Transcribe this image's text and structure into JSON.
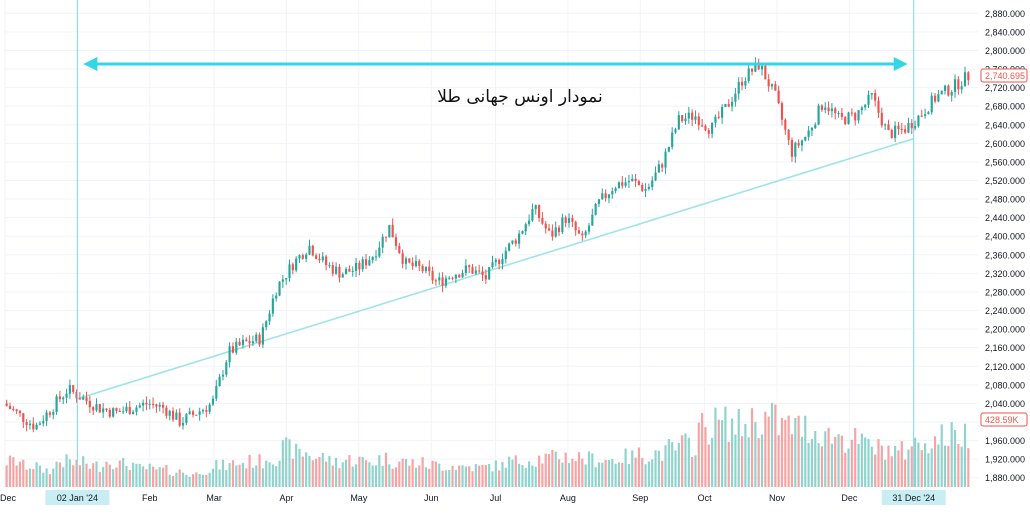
{
  "chart_data": {
    "type": "candlestick",
    "title": "نمودار اونس جهانی طلا",
    "y_ticks": [
      1880,
      1920,
      1960,
      2000,
      2040,
      2080,
      2120,
      2160,
      2200,
      2240,
      2280,
      2320,
      2360,
      2400,
      2440,
      2480,
      2520,
      2560,
      2600,
      2640,
      2680,
      2720,
      2760,
      2800,
      2840,
      2880
    ],
    "y_tick_labels": [
      "1,880.000",
      "1,920.000",
      "1,960.000",
      "2,000.000",
      "2,040.000",
      "2,080.000",
      "2,120.000",
      "2,160.000",
      "2,200.000",
      "2,240.000",
      "2,280.000",
      "2,320.000",
      "2,360.000",
      "2,400.000",
      "2,440.000",
      "2,480.000",
      "2,520.000",
      "2,560.000",
      "2,600.000",
      "2,640.000",
      "2,680.000",
      "2,720.000",
      "2,760.000",
      "2,800.000",
      "2,840.000",
      "2,880.000"
    ],
    "ylim": [
      1860,
      2900
    ],
    "x_labels": [
      {
        "label": "Dec",
        "week": 0
      },
      {
        "label": "02 Jan '24",
        "week": 4.5,
        "highlight": true
      },
      {
        "label": "Feb",
        "week": 9
      },
      {
        "label": "Mar",
        "week": 13
      },
      {
        "label": "Apr",
        "week": 17.5
      },
      {
        "label": "May",
        "week": 22
      },
      {
        "label": "Jun",
        "week": 26.5
      },
      {
        "label": "Jul",
        "week": 30.5
      },
      {
        "label": "Aug",
        "week": 35
      },
      {
        "label": "Sep",
        "week": 39.5
      },
      {
        "label": "Oct",
        "week": 43.5
      },
      {
        "label": "Nov",
        "week": 48
      },
      {
        "label": "Dec",
        "week": 52.5
      },
      {
        "label": "31 Dec '24",
        "week": 56.5,
        "highlight": true
      }
    ],
    "xlim": [
      0,
      60
    ],
    "price_path": [
      [
        0,
        2040
      ],
      [
        2,
        1990
      ],
      [
        3,
        2030
      ],
      [
        4,
        2070
      ],
      [
        5,
        2050
      ],
      [
        6,
        2030
      ],
      [
        7,
        2020
      ],
      [
        8,
        2030
      ],
      [
        9,
        2040
      ],
      [
        10,
        2030
      ],
      [
        11,
        2000
      ],
      [
        12,
        2020
      ],
      [
        13,
        2040
      ],
      [
        14,
        2150
      ],
      [
        15,
        2170
      ],
      [
        16,
        2180
      ],
      [
        17,
        2290
      ],
      [
        18,
        2340
      ],
      [
        19,
        2380
      ],
      [
        20,
        2340
      ],
      [
        21,
        2320
      ],
      [
        22,
        2330
      ],
      [
        23,
        2360
      ],
      [
        24,
        2420
      ],
      [
        25,
        2340
      ],
      [
        26,
        2330
      ],
      [
        27,
        2300
      ],
      [
        28,
        2320
      ],
      [
        29,
        2330
      ],
      [
        30,
        2310
      ],
      [
        31,
        2360
      ],
      [
        32,
        2400
      ],
      [
        33,
        2460
      ],
      [
        34,
        2400
      ],
      [
        35,
        2440
      ],
      [
        36,
        2390
      ],
      [
        37,
        2470
      ],
      [
        38,
        2510
      ],
      [
        39,
        2520
      ],
      [
        40,
        2500
      ],
      [
        41,
        2560
      ],
      [
        42,
        2650
      ],
      [
        43,
        2660
      ],
      [
        44,
        2630
      ],
      [
        45,
        2680
      ],
      [
        46,
        2740
      ],
      [
        47,
        2770
      ],
      [
        48,
        2700
      ],
      [
        49,
        2580
      ],
      [
        50,
        2620
      ],
      [
        51,
        2690
      ],
      [
        52,
        2650
      ],
      [
        53,
        2660
      ],
      [
        54,
        2700
      ],
      [
        55,
        2620
      ],
      [
        56,
        2630
      ],
      [
        57,
        2660
      ],
      [
        58,
        2700
      ],
      [
        59,
        2720
      ],
      [
        60,
        2745
      ]
    ],
    "volume_levels": [
      0.3,
      0.25,
      0.2,
      0.3,
      0.28,
      0.25,
      0.3,
      0.27,
      0.22,
      0.2,
      0.18,
      0.15,
      0.2,
      0.25,
      0.28,
      0.3,
      0.35,
      0.45,
      0.4,
      0.35,
      0.3,
      0.32,
      0.3,
      0.33,
      0.3,
      0.28,
      0.26,
      0.25,
      0.24,
      0.23,
      0.25,
      0.3,
      0.32,
      0.34,
      0.36,
      0.35,
      0.33,
      0.32,
      0.35,
      0.38,
      0.4,
      0.45,
      0.5,
      0.7,
      0.75,
      0.72,
      0.78,
      0.8,
      0.72,
      0.7,
      0.65,
      0.6,
      0.55,
      0.5,
      0.45,
      0.42,
      0.5,
      0.55,
      0.6,
      0.62
    ],
    "last_price_label": "2,740.695",
    "last_volume_label": "428.59K",
    "colors": {
      "bull": "#26a69a",
      "bear": "#ef5350",
      "bull_volume": "#8fd3cc",
      "bear_volume": "#f5a3a3",
      "arrow": "#33d6e6",
      "trendline": "#9fe3ea",
      "vline": "#7fdbe8",
      "grid": "#f0f3fa",
      "axis_text": "#131722",
      "highlight_bg": "#c8eef3",
      "price_badge": "#ef5350"
    }
  }
}
